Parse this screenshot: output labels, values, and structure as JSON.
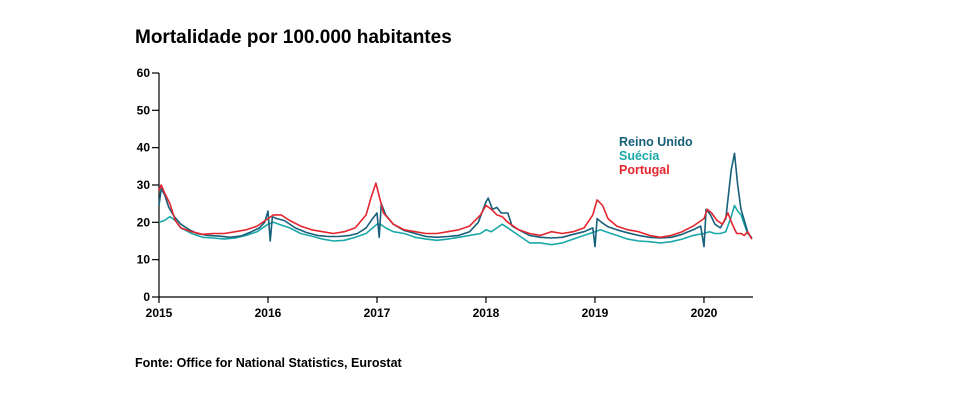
{
  "title": "Mortalidade por 100.000 habitantes",
  "source": "Fonte: Office for National Statistics, Eurostat",
  "chart_data": {
    "type": "line",
    "title": "Mortalidade por 100.000 habitantes",
    "xlabel": "",
    "ylabel": "",
    "xlim": [
      2015,
      2020.45
    ],
    "ylim": [
      0,
      60
    ],
    "x_ticks": [
      "2015",
      "2016",
      "2017",
      "2018",
      "2019",
      "2020"
    ],
    "y_ticks": [
      "0",
      "10",
      "20",
      "30",
      "40",
      "50",
      "60"
    ],
    "grid": false,
    "legend": "right",
    "series": [
      {
        "name": "Reino Unido",
        "color": "#17607a",
        "points": [
          [
            2015.0,
            24.5
          ],
          [
            2015.02,
            29.0
          ],
          [
            2015.05,
            27.5
          ],
          [
            2015.09,
            24.0
          ],
          [
            2015.14,
            21.5
          ],
          [
            2015.2,
            19.5
          ],
          [
            2015.28,
            18.0
          ],
          [
            2015.35,
            17.0
          ],
          [
            2015.45,
            16.5
          ],
          [
            2015.55,
            16.3
          ],
          [
            2015.65,
            16.0
          ],
          [
            2015.75,
            16.3
          ],
          [
            2015.85,
            17.5
          ],
          [
            2015.92,
            18.5
          ],
          [
            2015.97,
            20.0
          ],
          [
            2016.0,
            23.0
          ],
          [
            2016.02,
            15.0
          ],
          [
            2016.04,
            21.5
          ],
          [
            2016.08,
            21.0
          ],
          [
            2016.15,
            20.5
          ],
          [
            2016.25,
            18.5
          ],
          [
            2016.35,
            17.3
          ],
          [
            2016.45,
            16.5
          ],
          [
            2016.55,
            16.2
          ],
          [
            2016.65,
            16.2
          ],
          [
            2016.75,
            16.5
          ],
          [
            2016.82,
            17.0
          ],
          [
            2016.9,
            18.5
          ],
          [
            2016.96,
            21.0
          ],
          [
            2017.0,
            22.5
          ],
          [
            2017.02,
            16.0
          ],
          [
            2017.04,
            25.0
          ],
          [
            2017.08,
            22.0
          ],
          [
            2017.15,
            19.5
          ],
          [
            2017.25,
            17.8
          ],
          [
            2017.35,
            17.0
          ],
          [
            2017.45,
            16.2
          ],
          [
            2017.55,
            16.0
          ],
          [
            2017.65,
            16.2
          ],
          [
            2017.75,
            16.5
          ],
          [
            2017.85,
            17.5
          ],
          [
            2017.93,
            20.0
          ],
          [
            2018.0,
            25.5
          ],
          [
            2018.02,
            26.5
          ],
          [
            2018.06,
            23.5
          ],
          [
            2018.1,
            24.0
          ],
          [
            2018.14,
            22.5
          ],
          [
            2018.2,
            22.5
          ],
          [
            2018.24,
            19.0
          ],
          [
            2018.3,
            18.0
          ],
          [
            2018.4,
            16.5
          ],
          [
            2018.5,
            16.0
          ],
          [
            2018.6,
            15.8
          ],
          [
            2018.7,
            16.0
          ],
          [
            2018.8,
            16.8
          ],
          [
            2018.9,
            17.5
          ],
          [
            2018.98,
            18.5
          ],
          [
            2019.0,
            13.5
          ],
          [
            2019.02,
            21.0
          ],
          [
            2019.06,
            20.0
          ],
          [
            2019.12,
            18.8
          ],
          [
            2019.2,
            18.0
          ],
          [
            2019.3,
            17.2
          ],
          [
            2019.4,
            16.5
          ],
          [
            2019.5,
            16.0
          ],
          [
            2019.6,
            15.8
          ],
          [
            2019.7,
            16.0
          ],
          [
            2019.8,
            16.8
          ],
          [
            2019.9,
            18.0
          ],
          [
            2019.97,
            19.0
          ],
          [
            2020.0,
            13.5
          ],
          [
            2020.02,
            23.5
          ],
          [
            2020.06,
            22.0
          ],
          [
            2020.1,
            19.5
          ],
          [
            2020.15,
            18.5
          ],
          [
            2020.2,
            21.0
          ],
          [
            2020.25,
            34.0
          ],
          [
            2020.28,
            38.5
          ],
          [
            2020.31,
            30.0
          ],
          [
            2020.34,
            23.5
          ],
          [
            2020.37,
            20.5
          ],
          [
            2020.4,
            17.5
          ],
          [
            2020.44,
            15.5
          ]
        ]
      },
      {
        "name": "Suécia",
        "color": "#1aa8a8",
        "points": [
          [
            2015.0,
            20.0
          ],
          [
            2015.05,
            20.5
          ],
          [
            2015.1,
            21.5
          ],
          [
            2015.15,
            20.5
          ],
          [
            2015.2,
            18.5
          ],
          [
            2015.3,
            17.0
          ],
          [
            2015.4,
            16.0
          ],
          [
            2015.5,
            15.8
          ],
          [
            2015.6,
            15.5
          ],
          [
            2015.7,
            15.8
          ],
          [
            2015.8,
            16.5
          ],
          [
            2015.9,
            17.5
          ],
          [
            2016.0,
            19.5
          ],
          [
            2016.05,
            20.0
          ],
          [
            2016.1,
            19.5
          ],
          [
            2016.2,
            18.5
          ],
          [
            2016.3,
            17.0
          ],
          [
            2016.4,
            16.3
          ],
          [
            2016.5,
            15.5
          ],
          [
            2016.6,
            15.0
          ],
          [
            2016.7,
            15.2
          ],
          [
            2016.8,
            16.0
          ],
          [
            2016.9,
            17.0
          ],
          [
            2017.0,
            19.5
          ],
          [
            2017.03,
            19.5
          ],
          [
            2017.08,
            18.5
          ],
          [
            2017.15,
            17.5
          ],
          [
            2017.25,
            17.0
          ],
          [
            2017.35,
            16.0
          ],
          [
            2017.45,
            15.5
          ],
          [
            2017.55,
            15.2
          ],
          [
            2017.65,
            15.5
          ],
          [
            2017.75,
            16.0
          ],
          [
            2017.85,
            16.5
          ],
          [
            2017.95,
            17.0
          ],
          [
            2018.0,
            18.0
          ],
          [
            2018.05,
            17.5
          ],
          [
            2018.1,
            18.5
          ],
          [
            2018.15,
            19.5
          ],
          [
            2018.2,
            18.5
          ],
          [
            2018.3,
            16.5
          ],
          [
            2018.4,
            14.5
          ],
          [
            2018.5,
            14.5
          ],
          [
            2018.6,
            14.0
          ],
          [
            2018.7,
            14.5
          ],
          [
            2018.8,
            15.5
          ],
          [
            2018.9,
            16.5
          ],
          [
            2019.0,
            17.5
          ],
          [
            2019.05,
            18.0
          ],
          [
            2019.1,
            17.5
          ],
          [
            2019.2,
            16.5
          ],
          [
            2019.3,
            15.5
          ],
          [
            2019.4,
            15.0
          ],
          [
            2019.5,
            14.8
          ],
          [
            2019.6,
            14.5
          ],
          [
            2019.7,
            14.8
          ],
          [
            2019.8,
            15.5
          ],
          [
            2019.9,
            16.5
          ],
          [
            2020.0,
            17.0
          ],
          [
            2020.05,
            17.5
          ],
          [
            2020.1,
            17.0
          ],
          [
            2020.15,
            17.0
          ],
          [
            2020.2,
            17.5
          ],
          [
            2020.25,
            21.5
          ],
          [
            2020.28,
            24.5
          ],
          [
            2020.31,
            23.0
          ],
          [
            2020.34,
            22.0
          ],
          [
            2020.37,
            19.5
          ],
          [
            2020.4,
            17.0
          ],
          [
            2020.44,
            16.0
          ]
        ]
      },
      {
        "name": "Portugal",
        "color": "#e3262e",
        "points": [
          [
            2015.0,
            28.5
          ],
          [
            2015.02,
            30.0
          ],
          [
            2015.05,
            28.0
          ],
          [
            2015.1,
            25.0
          ],
          [
            2015.15,
            20.5
          ],
          [
            2015.2,
            18.5
          ],
          [
            2015.3,
            17.5
          ],
          [
            2015.4,
            16.8
          ],
          [
            2015.5,
            17.0
          ],
          [
            2015.6,
            17.0
          ],
          [
            2015.7,
            17.5
          ],
          [
            2015.8,
            18.0
          ],
          [
            2015.9,
            19.0
          ],
          [
            2016.0,
            21.0
          ],
          [
            2016.05,
            22.0
          ],
          [
            2016.12,
            22.0
          ],
          [
            2016.2,
            20.5
          ],
          [
            2016.3,
            19.0
          ],
          [
            2016.4,
            18.0
          ],
          [
            2016.5,
            17.5
          ],
          [
            2016.6,
            17.0
          ],
          [
            2016.7,
            17.5
          ],
          [
            2016.8,
            18.5
          ],
          [
            2016.9,
            22.0
          ],
          [
            2016.95,
            27.0
          ],
          [
            2016.99,
            30.5
          ],
          [
            2017.02,
            27.0
          ],
          [
            2017.06,
            22.5
          ],
          [
            2017.15,
            19.5
          ],
          [
            2017.25,
            18.0
          ],
          [
            2017.35,
            17.5
          ],
          [
            2017.45,
            17.0
          ],
          [
            2017.55,
            17.0
          ],
          [
            2017.65,
            17.5
          ],
          [
            2017.75,
            18.0
          ],
          [
            2017.85,
            19.0
          ],
          [
            2017.95,
            22.0
          ],
          [
            2018.0,
            24.5
          ],
          [
            2018.05,
            23.5
          ],
          [
            2018.1,
            22.0
          ],
          [
            2018.15,
            21.5
          ],
          [
            2018.2,
            20.0
          ],
          [
            2018.3,
            18.0
          ],
          [
            2018.4,
            17.0
          ],
          [
            2018.5,
            16.5
          ],
          [
            2018.6,
            17.5
          ],
          [
            2018.7,
            17.0
          ],
          [
            2018.8,
            17.5
          ],
          [
            2018.9,
            18.5
          ],
          [
            2018.98,
            22.0
          ],
          [
            2019.02,
            26.0
          ],
          [
            2019.07,
            24.5
          ],
          [
            2019.12,
            21.0
          ],
          [
            2019.2,
            19.0
          ],
          [
            2019.3,
            18.0
          ],
          [
            2019.4,
            17.5
          ],
          [
            2019.5,
            16.5
          ],
          [
            2019.6,
            16.0
          ],
          [
            2019.7,
            16.5
          ],
          [
            2019.8,
            17.5
          ],
          [
            2019.9,
            19.0
          ],
          [
            2020.0,
            21.0
          ],
          [
            2020.03,
            23.5
          ],
          [
            2020.07,
            22.5
          ],
          [
            2020.12,
            20.5
          ],
          [
            2020.17,
            19.5
          ],
          [
            2020.22,
            22.5
          ],
          [
            2020.26,
            19.5
          ],
          [
            2020.3,
            17.0
          ],
          [
            2020.34,
            17.0
          ],
          [
            2020.37,
            16.5
          ],
          [
            2020.4,
            17.5
          ],
          [
            2020.44,
            15.5
          ]
        ]
      }
    ]
  }
}
